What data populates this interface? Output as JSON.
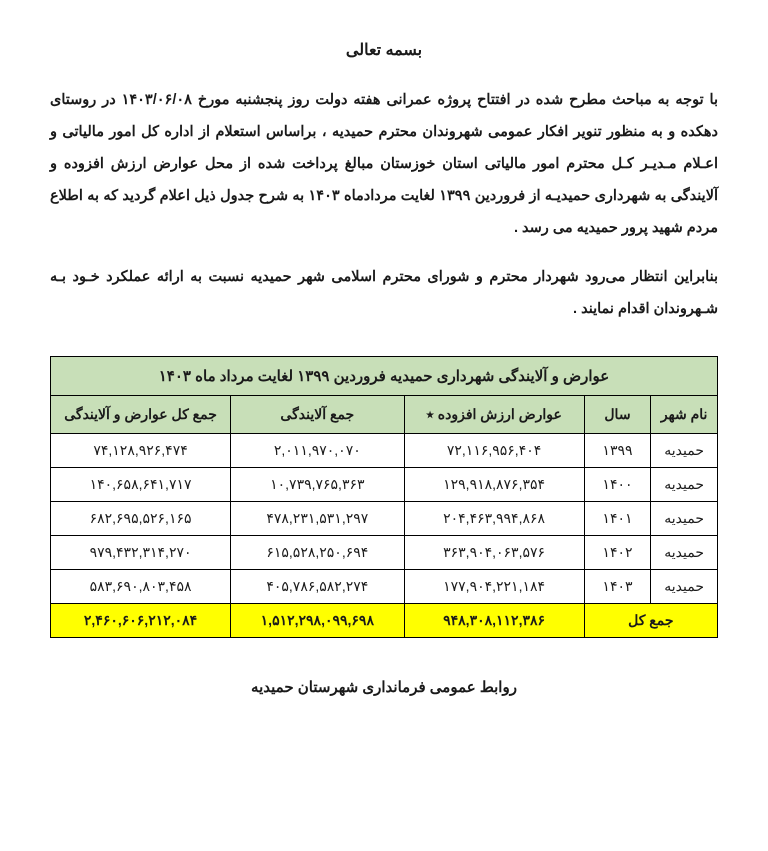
{
  "title": "بسمه تعالی",
  "para1": "با توجه به مباحث مطرح شده در افتتاح پروژه عمرانی هفته دولت روز پنجشنبه مورخ ۱۴۰۳/۰۶/۰۸ در روستای دهکده و به منظور تنویر افکار عمومی شهروندان محترم حمیدیه ، براساس استعلام از اداره کل امور مالیاتی و اعـلام مـدیـر کـل محترم امور مالیاتی استان خوزستان مبالغ پرداخت شده از محل عوارض ارزش افزوده و آلایندگی به شهرداری حمیدیـه از فروردین ۱۳۹۹ لغایت مردادماه ۱۴۰۳ به شرح جدول ذیل اعلام گردید که به اطلاع مردم شهید پرور حمیدیه می رسد .",
  "para2": "بنابراین انتظار می‌رود شهردار محترم و شورای محترم اسلامی شهر حمیدیه نسبت به ارائه عملکرد خـود بـه شـهروندان اقدام نمایند .",
  "table": {
    "title": "عوارض و آلایندگی شهرداری حمیدیه فروردین ۱۳۹۹ لغایت مرداد ماه ۱۴۰۳",
    "headers": {
      "city": "نام شهر",
      "year": "سال",
      "vat": "عوارض ارزش افزوده ٭",
      "pollution": "جمع آلایندگی",
      "total": "جمع کل عوارض و آلایندگی"
    },
    "rows": [
      {
        "city": "حمیدیه",
        "year": "۱۳۹۹",
        "vat": "۷۲,۱۱۶,۹۵۶,۴۰۴",
        "pol": "۲,۰۱۱,۹۷۰,۰۷۰",
        "tot": "۷۴,۱۲۸,۹۲۶,۴۷۴"
      },
      {
        "city": "حمیدیه",
        "year": "۱۴۰۰",
        "vat": "۱۲۹,۹۱۸,۸۷۶,۳۵۴",
        "pol": "۱۰,۷۳۹,۷۶۵,۳۶۳",
        "tot": "۱۴۰,۶۵۸,۶۴۱,۷۱۷"
      },
      {
        "city": "حمیدیه",
        "year": "۱۴۰۱",
        "vat": "۲۰۴,۴۶۳,۹۹۴,۸۶۸",
        "pol": "۴۷۸,۲۳۱,۵۳۱,۲۹۷",
        "tot": "۶۸۲,۶۹۵,۵۲۶,۱۶۵"
      },
      {
        "city": "حمیدیه",
        "year": "۱۴۰۲",
        "vat": "۳۶۳,۹۰۴,۰۶۳,۵۷۶",
        "pol": "۶۱۵,۵۲۸,۲۵۰,۶۹۴",
        "tot": "۹۷۹,۴۳۲,۳۱۴,۲۷۰"
      },
      {
        "city": "حمیدیه",
        "year": "۱۴۰۳",
        "vat": "۱۷۷,۹۰۴,۲۲۱,۱۸۴",
        "pol": "۴۰۵,۷۸۶,۵۸۲,۲۷۴",
        "tot": "۵۸۳,۶۹۰,۸۰۳,۴۵۸"
      }
    ],
    "totals": {
      "label": "جمع کل",
      "vat": "۹۴۸,۳۰۸,۱۱۲,۳۸۶",
      "pol": "۱,۵۱۲,۲۹۸,۰۹۹,۶۹۸",
      "tot": "۲,۴۶۰,۶۰۶,۲۱۲,۰۸۴"
    }
  },
  "footer": "روابط عمومی فرمانداری شهرستان حمیدیه",
  "colors": {
    "header_bg": "#c8dfb8",
    "total_bg": "#ffff00",
    "border": "#000000",
    "text": "#1a1a1a",
    "page_bg": "#ffffff"
  },
  "col_widths": {
    "city": "10%",
    "year": "10%",
    "vat": "27%",
    "pol": "26%",
    "tot": "27%"
  }
}
